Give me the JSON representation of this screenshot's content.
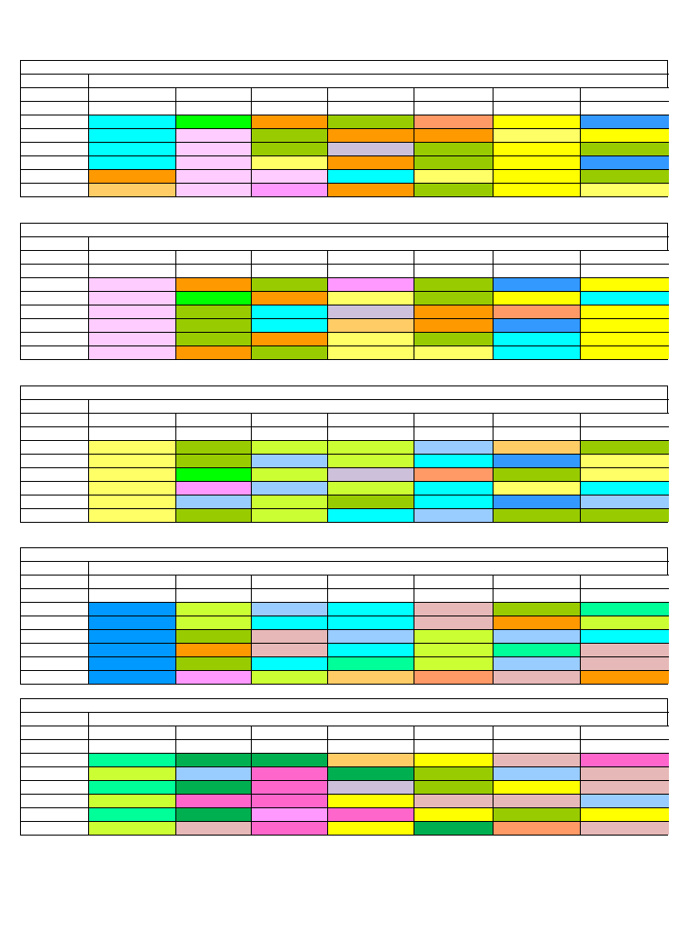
{
  "colors": {
    "cyan": "#00ffff",
    "green": "#00ff00",
    "orange": "#ff9900",
    "olive": "#99cc00",
    "salmon": "#ff9966",
    "yellow": "#ffff00",
    "blue": "#3399ff",
    "pink": "#ffccff",
    "lavender": "#ccc0da",
    "lightyellow": "#ffff66",
    "peach": "#ffcc66",
    "magenta": "#ff99ff",
    "lime": "#ccff33",
    "skyblue": "#99ccff",
    "azure": "#0099ff",
    "mint": "#00ff99",
    "rose": "#e6b8b7",
    "darkgreen": "#00b050",
    "hotpink": "#ff66cc"
  },
  "timetables": [
    {
      "rows": [
        [
          "",
          "",
          "",
          "",
          "",
          "",
          ""
        ],
        [
          "",
          "",
          "",
          "",
          "",
          "",
          ""
        ],
        [
          "cyan",
          "green",
          "orange",
          "olive",
          "salmon",
          "yellow",
          "blue"
        ],
        [
          "cyan",
          "pink",
          "olive",
          "orange",
          "orange",
          "lightyellow",
          "yellow"
        ],
        [
          "cyan",
          "pink",
          "olive",
          "lavender",
          "olive",
          "yellow",
          "olive"
        ],
        [
          "cyan",
          "pink",
          "lightyellow",
          "orange",
          "olive",
          "yellow",
          "blue"
        ],
        [
          "orange",
          "pink",
          "pink",
          "cyan",
          "lightyellow",
          "yellow",
          "olive"
        ],
        [
          "peach",
          "pink",
          "magenta",
          "orange",
          "olive",
          "yellow",
          "lightyellow"
        ]
      ]
    },
    {
      "rows": [
        [
          "",
          "",
          "",
          "",
          "",
          "",
          ""
        ],
        [
          "",
          "",
          "",
          "",
          "",
          "",
          ""
        ],
        [
          "pink",
          "orange",
          "olive",
          "magenta",
          "olive",
          "blue",
          "yellow"
        ],
        [
          "pink",
          "green",
          "orange",
          "lightyellow",
          "olive",
          "yellow",
          "cyan"
        ],
        [
          "pink",
          "olive",
          "cyan",
          "lavender",
          "orange",
          "salmon",
          "yellow"
        ],
        [
          "pink",
          "olive",
          "cyan",
          "peach",
          "orange",
          "blue",
          "yellow"
        ],
        [
          "pink",
          "olive",
          "orange",
          "lightyellow",
          "olive",
          "cyan",
          "yellow"
        ],
        [
          "pink",
          "orange",
          "olive",
          "lightyellow",
          "lightyellow",
          "cyan",
          "yellow"
        ]
      ]
    },
    {
      "rows": [
        [
          "",
          "",
          "",
          "",
          "",
          "",
          ""
        ],
        [
          "",
          "",
          "",
          "",
          "",
          "",
          ""
        ],
        [
          "lightyellow",
          "olive",
          "lime",
          "lime",
          "skyblue",
          "peach",
          "olive"
        ],
        [
          "lightyellow",
          "olive",
          "skyblue",
          "lime",
          "cyan",
          "blue",
          "lightyellow"
        ],
        [
          "lightyellow",
          "green",
          "lime",
          "lavender",
          "salmon",
          "olive",
          "lightyellow"
        ],
        [
          "lightyellow",
          "magenta",
          "skyblue",
          "lime",
          "cyan",
          "lightyellow",
          "cyan"
        ],
        [
          "lightyellow",
          "skyblue",
          "lime",
          "olive",
          "cyan",
          "blue",
          "skyblue"
        ],
        [
          "lightyellow",
          "olive",
          "lime",
          "cyan",
          "skyblue",
          "olive",
          "olive"
        ]
      ]
    },
    {
      "rows": [
        [
          "",
          "",
          "",
          "",
          "",
          "",
          ""
        ],
        [
          "",
          "",
          "",
          "",
          "",
          "",
          ""
        ],
        [
          "azure",
          "lime",
          "skyblue",
          "cyan",
          "rose",
          "olive",
          "mint"
        ],
        [
          "azure",
          "lime",
          "cyan",
          "cyan",
          "rose",
          "orange",
          "lime"
        ],
        [
          "azure",
          "olive",
          "rose",
          "skyblue",
          "lime",
          "skyblue",
          "cyan"
        ],
        [
          "azure",
          "orange",
          "rose",
          "cyan",
          "lime",
          "mint",
          "rose"
        ],
        [
          "azure",
          "olive",
          "cyan",
          "mint",
          "lime",
          "skyblue",
          "rose"
        ],
        [
          "azure",
          "magenta",
          "lime",
          "peach",
          "salmon",
          "rose",
          "orange"
        ]
      ]
    },
    {
      "rows": [
        [
          "",
          "",
          "",
          "",
          "",
          "",
          ""
        ],
        [
          "",
          "",
          "",
          "",
          "",
          "",
          ""
        ],
        [
          "mint",
          "darkgreen",
          "darkgreen",
          "peach",
          "yellow",
          "rose",
          "hotpink"
        ],
        [
          "lime",
          "skyblue",
          "hotpink",
          "darkgreen",
          "olive",
          "skyblue",
          "rose"
        ],
        [
          "mint",
          "darkgreen",
          "hotpink",
          "lavender",
          "olive",
          "yellow",
          "rose"
        ],
        [
          "lime",
          "hotpink",
          "hotpink",
          "yellow",
          "rose",
          "rose",
          "skyblue"
        ],
        [
          "mint",
          "darkgreen",
          "magenta",
          "hotpink",
          "yellow",
          "olive",
          "yellow"
        ],
        [
          "lime",
          "rose",
          "hotpink",
          "yellow",
          "darkgreen",
          "salmon",
          "rose"
        ]
      ]
    }
  ]
}
